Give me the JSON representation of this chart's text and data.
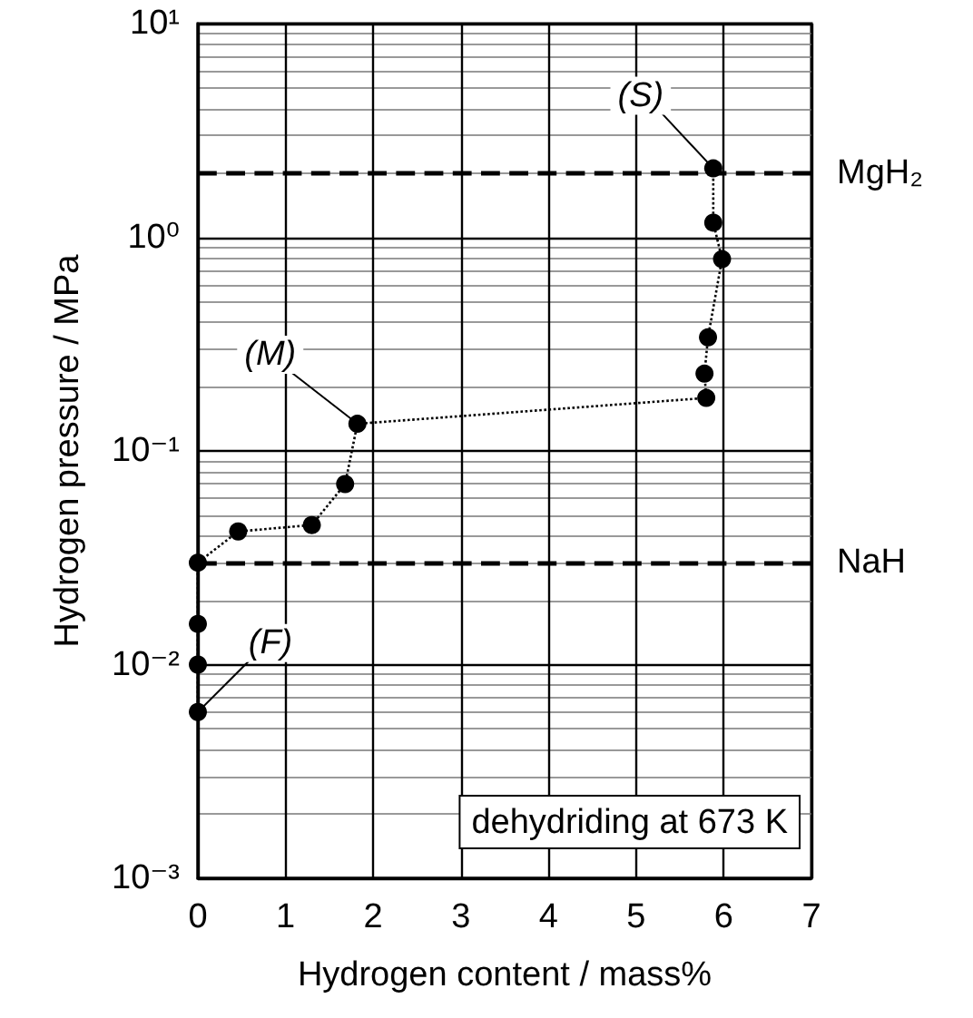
{
  "chart_data": {
    "type": "line",
    "xlabel": "Hydrogen content / mass%",
    "ylabel": "Hydrogen pressure / MPa",
    "x": [
      0,
      0,
      0,
      0,
      0.46,
      1.3,
      1.68,
      1.82,
      5.8,
      5.78,
      5.82,
      5.98,
      5.88,
      5.88
    ],
    "series": [
      {
        "color": "#000000",
        "values": [
          0.006,
          0.01,
          0.0155,
          0.03,
          0.042,
          0.045,
          0.07,
          0.134,
          0.177,
          0.23,
          0.34,
          0.79,
          1.17,
          2.1
        ]
      }
    ],
    "marker": "circle",
    "line_style": "dotted",
    "log": true,
    "grid": true,
    "xlim": [
      0,
      7
    ],
    "xticks": [
      0,
      1,
      2,
      3,
      4,
      5,
      6,
      7
    ],
    "ylim": [
      0.001,
      10
    ],
    "yticks": [
      {
        "value": 0.001,
        "label": "10⁻³"
      },
      {
        "value": 0.01,
        "label": "10⁻²"
      },
      {
        "value": 0.1,
        "label": "10⁻¹"
      },
      {
        "value": 1,
        "label": "10⁰"
      },
      {
        "value": 10,
        "label": "10¹"
      }
    ],
    "ref_lines": [
      {
        "axis": "y",
        "value": 2,
        "label": "MgH₂",
        "line_style": "dashed",
        "color": "#000000"
      },
      {
        "axis": "y",
        "value": 0.03,
        "label": "NaH",
        "line_style": "dashed",
        "color": "#000000"
      }
    ],
    "annotations": [
      {
        "text": "(S)",
        "x": 5.88,
        "y": 2.1
      },
      {
        "text": "(M)",
        "x": 1.82,
        "y": 0.134
      },
      {
        "text": "(F)",
        "x": 0,
        "y": 0.006
      },
      "dehydriding at 673 K"
    ]
  }
}
